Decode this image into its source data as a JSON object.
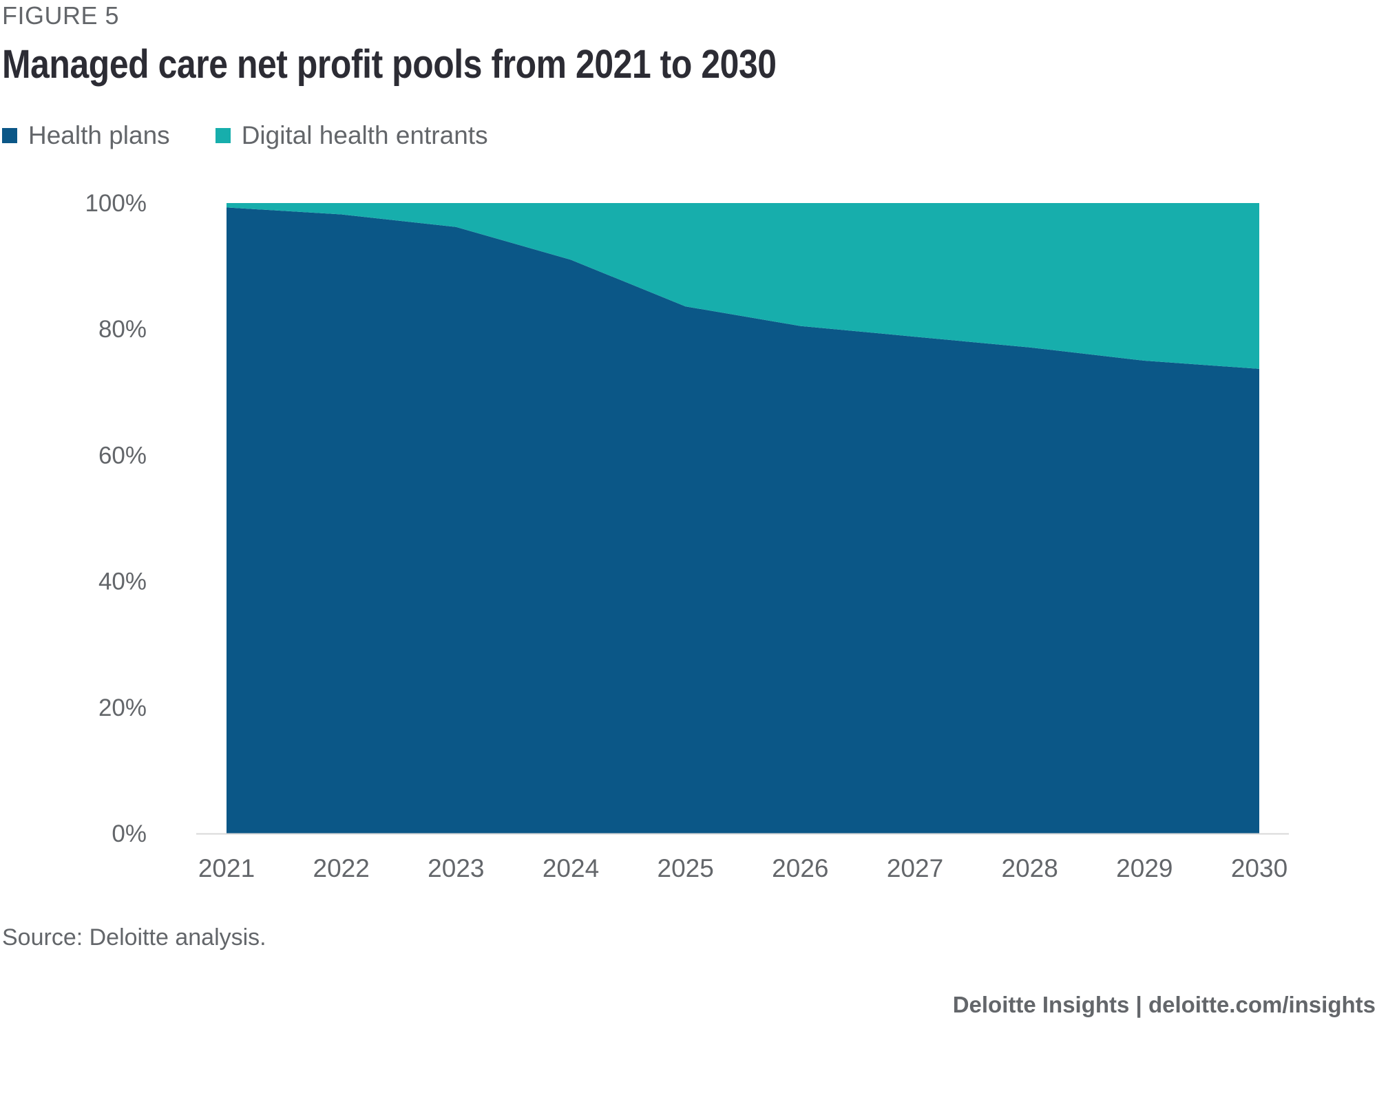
{
  "figure_label": "FIGURE 5",
  "chart_data": {
    "type": "area",
    "stacked": true,
    "percent": true,
    "title": "Managed care net profit pools from 2021 to 2030",
    "categories": [
      "2021",
      "2022",
      "2023",
      "2024",
      "2025",
      "2026",
      "2027",
      "2028",
      "2029",
      "2030"
    ],
    "series": [
      {
        "name": "Health plans",
        "color": "#0b5787",
        "values": [
          99.3,
          98.2,
          96.2,
          91.0,
          83.6,
          80.5,
          78.8,
          77.1,
          75.0,
          73.7
        ]
      },
      {
        "name": "Digital health entrants",
        "color": "#17aeac",
        "values": [
          0.7,
          1.8,
          3.8,
          9.0,
          16.4,
          19.5,
          21.2,
          22.9,
          25.0,
          26.3
        ]
      }
    ],
    "y_ticks": [
      "0%",
      "20%",
      "40%",
      "60%",
      "80%",
      "100%"
    ],
    "ylim": [
      0,
      100
    ],
    "xlabel": "",
    "ylabel": "",
    "legend_position": "top-left",
    "grid": false
  },
  "source": "Source: Deloitte analysis.",
  "footer": "Deloitte Insights | deloitte.com/insights"
}
